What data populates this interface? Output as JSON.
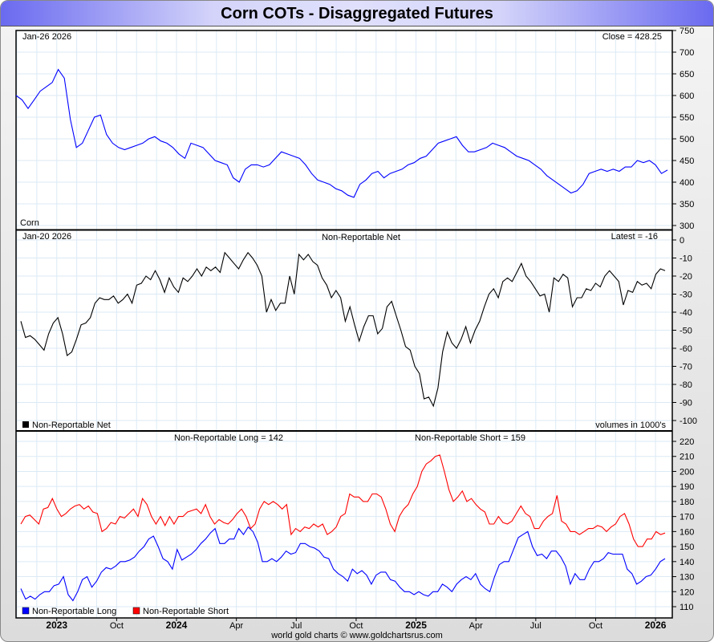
{
  "title": "Corn COTs - Disaggregated Futures",
  "footer": "world gold charts © www.goldchartsrus.com",
  "colors": {
    "price": "#0000ff",
    "net": "#000000",
    "long": "#0000ff",
    "short": "#ff0000",
    "grid": "#dbeaf5"
  },
  "x_axis": {
    "range": [
      2023.33,
      2026.07
    ],
    "ticks": [
      {
        "label": "2023",
        "x": 2023.5,
        "bold": true
      },
      {
        "label": "Oct",
        "x": 2023.75
      },
      {
        "label": "2024",
        "x": 2024.0,
        "bold": true
      },
      {
        "label": "Apr",
        "x": 2024.25
      },
      {
        "label": "Jul",
        "x": 2024.5
      },
      {
        "label": "Oct",
        "x": 2024.75
      },
      {
        "label": "2025",
        "x": 2025.0,
        "bold": true
      },
      {
        "label": "Apr",
        "x": 2025.25
      },
      {
        "label": "Jul",
        "x": 2025.5
      },
      {
        "label": "Oct",
        "x": 2025.75
      },
      {
        "label": "2026",
        "x": 2026.0,
        "bold": true
      }
    ]
  },
  "chart_data": [
    {
      "type": "line",
      "panel": "price",
      "date_label": "Jan-26  2026",
      "readout": "Close = 428.25",
      "series_label": "Corn",
      "ylim": [
        300,
        750
      ],
      "yticks": [
        750,
        700,
        650,
        600,
        550,
        500,
        450,
        400,
        350,
        300
      ],
      "x_start": 2023.33,
      "x_end": 2026.05,
      "values": [
        600,
        590,
        570,
        590,
        610,
        620,
        630,
        660,
        640,
        545,
        480,
        490,
        520,
        550,
        555,
        510,
        490,
        480,
        475,
        480,
        485,
        490,
        500,
        505,
        495,
        490,
        480,
        465,
        455,
        490,
        485,
        480,
        465,
        450,
        445,
        440,
        410,
        400,
        430,
        440,
        440,
        435,
        440,
        455,
        470,
        465,
        460,
        455,
        440,
        420,
        405,
        400,
        395,
        385,
        380,
        370,
        365,
        395,
        405,
        420,
        425,
        410,
        420,
        425,
        430,
        440,
        445,
        455,
        460,
        475,
        490,
        495,
        500,
        505,
        485,
        470,
        470,
        475,
        480,
        490,
        485,
        480,
        470,
        460,
        455,
        450,
        440,
        430,
        415,
        405,
        395,
        385,
        375,
        380,
        395,
        420,
        425,
        430,
        425,
        430,
        425,
        435,
        435,
        450,
        445,
        450,
        440,
        420,
        428
      ]
    },
    {
      "type": "line",
      "panel": "net",
      "title": "Non-Reportable Net",
      "date_label": "Jan-20  2026",
      "readout": "Latest = -16",
      "legend": "Non-Reportable Net",
      "note": "volumes in 1000's",
      "ylim": [
        -105,
        0
      ],
      "yticks": [
        0,
        -10,
        -20,
        -30,
        -40,
        -50,
        -60,
        -70,
        -80,
        -90,
        -100
      ],
      "x_start": 2023.35,
      "x_end": 2026.04,
      "values": [
        -45,
        -54,
        -53,
        -55,
        -58,
        -61,
        -52,
        -46,
        -43,
        -52,
        -64,
        -62,
        -55,
        -47,
        -46,
        -43,
        -35,
        -32,
        -33,
        -33,
        -31,
        -35,
        -33,
        -30,
        -35,
        -25,
        -24,
        -20,
        -22,
        -17,
        -22,
        -29,
        -21,
        -26,
        -29,
        -21,
        -23,
        -20,
        -16,
        -20,
        -15,
        -17,
        -15,
        -18,
        -7,
        -10,
        -13,
        -16,
        -11,
        -7,
        -10,
        -14,
        -20,
        -40,
        -33,
        -39,
        -35,
        -35,
        -20,
        -30,
        -8,
        -11,
        -8,
        -12,
        -14,
        -21,
        -25,
        -32,
        -28,
        -32,
        -45,
        -37,
        -47,
        -56,
        -48,
        -42,
        -42,
        -52,
        -49,
        -37,
        -34,
        -42,
        -50,
        -59,
        -61,
        -70,
        -74,
        -88,
        -87,
        -92,
        -82,
        -62,
        -51,
        -57,
        -60,
        -55,
        -48,
        -57,
        -50,
        -45,
        -37,
        -30,
        -27,
        -32,
        -23,
        -21,
        -23,
        -18,
        -13,
        -20,
        -23,
        -27,
        -31,
        -30,
        -40,
        -21,
        -23,
        -19,
        -21,
        -37,
        -32,
        -32,
        -27,
        -28,
        -24,
        -26,
        -20,
        -17,
        -20,
        -23,
        -36,
        -28,
        -29,
        -23,
        -25,
        -24,
        -27,
        -19,
        -16,
        -17
      ]
    },
    {
      "type": "line",
      "panel": "long_short",
      "ylim": [
        105,
        222
      ],
      "yticks": [
        220,
        210,
        200,
        190,
        180,
        170,
        160,
        150,
        140,
        130,
        120,
        110
      ],
      "x_start": 2023.35,
      "x_end": 2026.04,
      "series": [
        {
          "name": "Non-Reportable Long",
          "label": "Non-Reportable Long = 142",
          "values": [
            122,
            115,
            117,
            115,
            118,
            120,
            120,
            124,
            125,
            130,
            118,
            114,
            120,
            128,
            130,
            123,
            127,
            133,
            136,
            135,
            137,
            140,
            140,
            141,
            143,
            147,
            150,
            155,
            157,
            150,
            142,
            140,
            135,
            148,
            141,
            143,
            145,
            148,
            152,
            155,
            159,
            162,
            152,
            152,
            155,
            155,
            162,
            158,
            163,
            160,
            153,
            140,
            140,
            142,
            140,
            143,
            147,
            145,
            146,
            152,
            152,
            150,
            149,
            147,
            143,
            142,
            135,
            132,
            130,
            127,
            135,
            132,
            134,
            131,
            125,
            131,
            133,
            133,
            128,
            127,
            123,
            120,
            120,
            118,
            120,
            118,
            117,
            120,
            120,
            125,
            123,
            120,
            125,
            128,
            130,
            128,
            132,
            125,
            122,
            120,
            130,
            138,
            140,
            140,
            148,
            156,
            158,
            160,
            150,
            144,
            145,
            142,
            147,
            147,
            143,
            137,
            125,
            132,
            128,
            128,
            135,
            140,
            140,
            142,
            146,
            145,
            145,
            145,
            135,
            132,
            125,
            127,
            130,
            131,
            135,
            140,
            142
          ]
        },
        {
          "name": "Non-Reportable Short",
          "label": "Non-Reportable Short = 159",
          "values": [
            165,
            170,
            171,
            168,
            165,
            175,
            176,
            182,
            175,
            170,
            172,
            175,
            177,
            178,
            175,
            177,
            173,
            172,
            160,
            162,
            166,
            165,
            170,
            169,
            172,
            175,
            170,
            182,
            178,
            170,
            165,
            170,
            164,
            170,
            165,
            170,
            170,
            173,
            174,
            175,
            172,
            178,
            170,
            165,
            168,
            166,
            165,
            168,
            172,
            175,
            170,
            162,
            165,
            175,
            180,
            178,
            180,
            178,
            175,
            178,
            158,
            162,
            160,
            163,
            162,
            165,
            163,
            165,
            158,
            160,
            163,
            170,
            172,
            185,
            183,
            183,
            180,
            180,
            185,
            185,
            183,
            175,
            165,
            160,
            170,
            175,
            178,
            185,
            190,
            200,
            205,
            207,
            210,
            211,
            200,
            188,
            180,
            183,
            187,
            180,
            182,
            178,
            175,
            173,
            165,
            165,
            170,
            166,
            165,
            167,
            172,
            177,
            172,
            170,
            162,
            162,
            167,
            170,
            172,
            184,
            167,
            165,
            160,
            160,
            158,
            160,
            162,
            162,
            164,
            163,
            160,
            163,
            165,
            170,
            172,
            165,
            155,
            150,
            150,
            155,
            155,
            160,
            158,
            159
          ]
        }
      ]
    }
  ]
}
